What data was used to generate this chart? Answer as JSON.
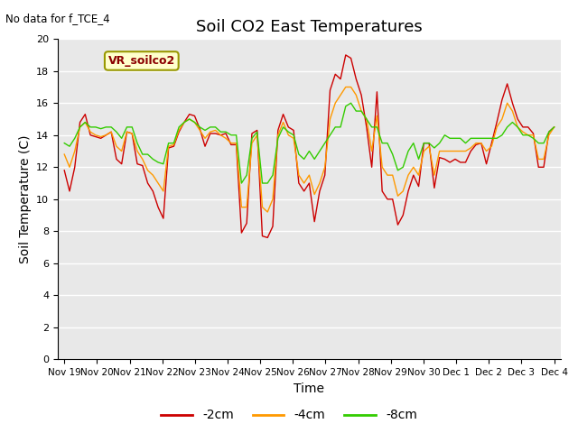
{
  "title": "Soil CO2 East Temperatures",
  "subtitle": "No data for f_TCE_4",
  "ylabel": "Soil Temperature (C)",
  "xlabel": "Time",
  "annotation": "VR_soilco2",
  "ylim": [
    0,
    20
  ],
  "yticks": [
    0,
    2,
    4,
    6,
    8,
    10,
    12,
    14,
    16,
    18,
    20
  ],
  "xtick_labels": [
    "Nov 19",
    "Nov 20",
    "Nov 21",
    "Nov 22",
    "Nov 23",
    "Nov 24",
    "Nov 25",
    "Nov 26",
    "Nov 27",
    "Nov 28",
    "Nov 29",
    "Nov 30",
    "Dec 1",
    "Dec 2",
    "Dec 3",
    "Dec 4"
  ],
  "legend_labels": [
    "-2cm",
    "-4cm",
    "-8cm"
  ],
  "colors": [
    "#cc0000",
    "#ff9900",
    "#33cc00"
  ],
  "bg_color": "#e8e8e8",
  "grid_color": "#ffffff",
  "title_fontsize": 13,
  "label_fontsize": 10,
  "tick_fontsize": 8,
  "series_2cm": [
    11.8,
    10.5,
    12.0,
    14.8,
    15.3,
    14.0,
    13.9,
    13.8,
    14.0,
    14.2,
    12.5,
    12.2,
    14.2,
    14.1,
    12.2,
    12.1,
    11.0,
    10.5,
    9.5,
    8.8,
    13.2,
    13.3,
    14.2,
    14.8,
    15.3,
    15.2,
    14.4,
    13.3,
    14.1,
    14.1,
    14.0,
    14.1,
    13.4,
    13.4,
    7.9,
    8.5,
    14.1,
    14.3,
    7.7,
    7.6,
    8.3,
    14.3,
    15.3,
    14.5,
    14.3,
    11.0,
    10.5,
    11.0,
    8.6,
    10.5,
    11.5,
    16.8,
    17.8,
    17.5,
    19.0,
    18.8,
    17.5,
    16.5,
    14.5,
    12.0,
    16.7,
    10.5,
    10.0,
    10.0,
    8.4,
    9.0,
    10.5,
    11.5,
    10.8,
    13.5,
    13.5,
    10.7,
    12.6,
    12.5,
    12.3,
    12.5,
    12.3,
    12.3,
    13.0,
    13.4,
    13.5,
    12.2,
    13.5,
    14.8,
    16.2,
    17.2,
    16.0,
    15.0,
    14.5,
    14.5,
    14.1,
    12.0,
    12.0,
    14.2,
    14.5
  ],
  "series_4cm": [
    12.8,
    12.0,
    13.0,
    14.5,
    14.8,
    14.2,
    14.0,
    13.9,
    14.0,
    14.2,
    13.3,
    13.0,
    14.2,
    14.1,
    13.0,
    12.5,
    11.8,
    11.5,
    11.0,
    10.5,
    13.3,
    13.4,
    14.3,
    14.8,
    15.0,
    14.8,
    14.3,
    13.8,
    14.2,
    14.3,
    14.0,
    13.8,
    13.5,
    13.5,
    9.5,
    9.5,
    13.5,
    14.0,
    9.5,
    9.2,
    10.0,
    14.0,
    14.8,
    14.0,
    13.8,
    11.5,
    11.0,
    11.5,
    10.3,
    11.0,
    12.0,
    15.0,
    16.0,
    16.5,
    17.0,
    17.0,
    16.5,
    15.5,
    15.0,
    13.0,
    15.2,
    12.0,
    11.5,
    11.5,
    10.2,
    10.5,
    11.5,
    12.0,
    11.5,
    13.0,
    13.3,
    11.5,
    13.0,
    13.0,
    13.0,
    13.0,
    13.0,
    13.0,
    13.2,
    13.5,
    13.5,
    13.0,
    13.3,
    14.5,
    15.0,
    16.0,
    15.5,
    14.5,
    14.2,
    14.0,
    14.0,
    12.5,
    12.5,
    14.0,
    14.5
  ],
  "series_8cm": [
    13.5,
    13.3,
    13.8,
    14.5,
    14.8,
    14.5,
    14.5,
    14.4,
    14.5,
    14.5,
    14.2,
    13.8,
    14.5,
    14.5,
    13.5,
    12.8,
    12.8,
    12.5,
    12.3,
    12.2,
    13.5,
    13.5,
    14.5,
    14.8,
    15.0,
    14.8,
    14.5,
    14.3,
    14.5,
    14.5,
    14.2,
    14.2,
    14.0,
    14.0,
    11.0,
    11.5,
    13.8,
    14.2,
    11.0,
    11.0,
    11.5,
    13.8,
    14.5,
    14.2,
    14.0,
    12.8,
    12.5,
    13.0,
    12.5,
    13.0,
    13.5,
    14.0,
    14.5,
    14.5,
    15.8,
    16.0,
    15.5,
    15.5,
    15.0,
    14.5,
    14.5,
    13.5,
    13.5,
    12.8,
    11.8,
    12.0,
    13.0,
    13.5,
    12.5,
    13.5,
    13.5,
    13.2,
    13.5,
    14.0,
    13.8,
    13.8,
    13.8,
    13.5,
    13.8,
    13.8,
    13.8,
    13.8,
    13.8,
    13.8,
    14.0,
    14.5,
    14.8,
    14.5,
    14.0,
    14.0,
    13.8,
    13.5,
    13.5,
    14.2,
    14.5
  ]
}
